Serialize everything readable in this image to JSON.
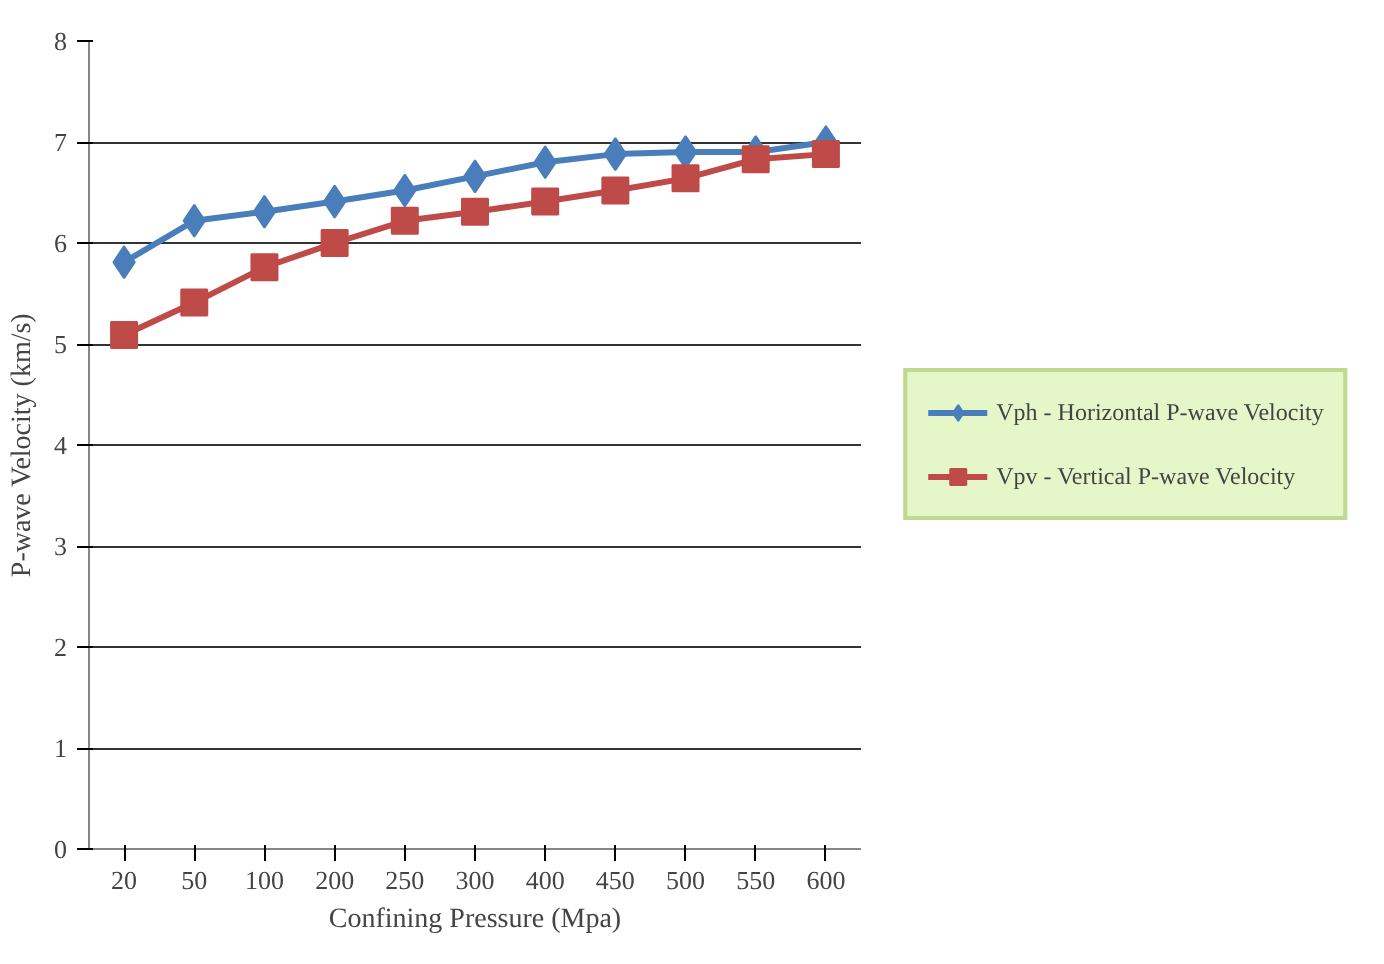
{
  "chart_data": {
    "type": "line",
    "xlabel": "Confining Pressure (Mpa)",
    "ylabel": "P-wave Velocity (km/s)",
    "categories": [
      "20",
      "50",
      "100",
      "200",
      "250",
      "300",
      "400",
      "450",
      "500",
      "550",
      "600"
    ],
    "series": [
      {
        "name": "Vph - Horizontal P-wave Velocity",
        "color": "#4a7ebb",
        "marker": "diamond",
        "values": [
          5.81,
          6.22,
          6.31,
          6.41,
          6.52,
          6.66,
          6.8,
          6.88,
          6.9,
          6.9,
          7.0
        ]
      },
      {
        "name": "Vpv - Vertical P-wave Velocity",
        "color": "#be4b48",
        "marker": "square",
        "values": [
          5.09,
          5.41,
          5.76,
          6.0,
          6.22,
          6.31,
          6.41,
          6.52,
          6.64,
          6.83,
          6.88
        ]
      }
    ],
    "ylim": [
      0,
      8
    ],
    "yticks": [
      0,
      1,
      2,
      3,
      4,
      5,
      6,
      7,
      8
    ],
    "grid": "y",
    "legend": "right"
  }
}
